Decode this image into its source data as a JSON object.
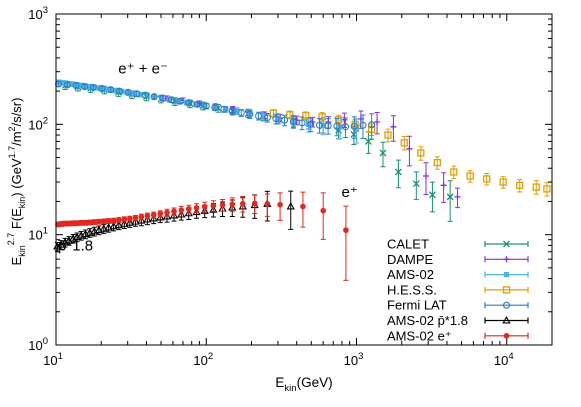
{
  "chart_data": {
    "type": "scatter",
    "xscale": "log",
    "yscale": "log",
    "xlim": [
      10,
      20000
    ],
    "ylim": [
      1,
      1000
    ],
    "grid": false,
    "legend_position": "bottom-right",
    "xlabel": "E_kin(GeV)",
    "ylabel": "E_kin^2.7 F(E_kin) (GeV^1.7/m^2/s/sr)",
    "x_ticks": [
      {
        "value": 10,
        "base": "10",
        "exp": "1"
      },
      {
        "value": 100,
        "base": "10",
        "exp": "2"
      },
      {
        "value": 1000,
        "base": "10",
        "exp": "3"
      },
      {
        "value": 10000,
        "base": "10",
        "exp": "4"
      }
    ],
    "y_ticks": [
      {
        "value": 1,
        "base": "10",
        "exp": "0"
      },
      {
        "value": 10,
        "base": "10",
        "exp": "1"
      },
      {
        "value": 100,
        "base": "10",
        "exp": "2"
      },
      {
        "value": 1000,
        "base": "10",
        "exp": "3"
      }
    ],
    "annotations": [
      {
        "text": "e⁺ + e⁻",
        "x": 38,
        "y": 290
      },
      {
        "text": "e⁺",
        "x": 900,
        "y": 22
      },
      {
        "text": "p̄*1.8",
        "x": 13.5,
        "y": 7.2
      }
    ],
    "series": [
      {
        "name": "CALET",
        "color": "#1a9070",
        "marker": "x",
        "points": [
          [
            11.5,
            225,
            8
          ],
          [
            14,
            218,
            8
          ],
          [
            17,
            212,
            8
          ],
          [
            21,
            205,
            8
          ],
          [
            26,
            195,
            8
          ],
          [
            32,
            186,
            8
          ],
          [
            40,
            178,
            8
          ],
          [
            50,
            170,
            8
          ],
          [
            62,
            161,
            8
          ],
          [
            78,
            154,
            8
          ],
          [
            95,
            147,
            8
          ],
          [
            120,
            140,
            8
          ],
          [
            150,
            132,
            8
          ],
          [
            190,
            125,
            8
          ],
          [
            240,
            118,
            9
          ],
          [
            300,
            113,
            10
          ],
          [
            380,
            108,
            11
          ],
          [
            480,
            103,
            12
          ],
          [
            600,
            97,
            14
          ],
          [
            760,
            88,
            16
          ],
          [
            960,
            81,
            19
          ],
          [
            1200,
            70,
            22
          ],
          [
            1500,
            55,
            25
          ],
          [
            1900,
            37,
            28
          ],
          [
            2500,
            29,
            28
          ],
          [
            3200,
            23,
            30
          ],
          [
            4200,
            22,
            40
          ]
        ]
      },
      {
        "name": "DAMPE",
        "color": "#8a2be2",
        "marker": "plus",
        "points": [
          [
            55,
            172,
            5
          ],
          [
            70,
            165,
            5
          ],
          [
            90,
            155,
            5
          ],
          [
            115,
            146,
            5
          ],
          [
            150,
            137,
            6
          ],
          [
            190,
            129,
            6
          ],
          [
            245,
            121,
            7
          ],
          [
            310,
            114,
            8
          ],
          [
            400,
            109,
            9
          ],
          [
            510,
            105,
            10
          ],
          [
            650,
            105,
            12
          ],
          [
            830,
            110,
            15
          ],
          [
            1070,
            112,
            18
          ],
          [
            1370,
            105,
            22
          ],
          [
            1760,
            95,
            26
          ],
          [
            2250,
            60,
            30
          ],
          [
            2900,
            34,
            32
          ],
          [
            3800,
            28,
            30
          ],
          [
            4700,
            22,
            20
          ]
        ]
      },
      {
        "name": "AMS-02",
        "color": "#4fb4e4",
        "marker": "square-filled",
        "points": [
          [
            10.5,
            240,
            5
          ],
          [
            11,
            238,
            5
          ],
          [
            11.6,
            236,
            5
          ],
          [
            12.3,
            233,
            5
          ],
          [
            13,
            231,
            5
          ],
          [
            13.8,
            228,
            5
          ],
          [
            14.7,
            225,
            5
          ],
          [
            15.6,
            222,
            5
          ],
          [
            16.7,
            219,
            5
          ],
          [
            18,
            216,
            5
          ],
          [
            19.5,
            213,
            5
          ],
          [
            21,
            210,
            5
          ],
          [
            23,
            206,
            5
          ],
          [
            25,
            202,
            5
          ],
          [
            27.5,
            198,
            5
          ],
          [
            30,
            194,
            5
          ],
          [
            33,
            190,
            5
          ],
          [
            36.5,
            186,
            5
          ],
          [
            40.5,
            182,
            5
          ],
          [
            45,
            177,
            5
          ],
          [
            50.5,
            172,
            5
          ],
          [
            57,
            167,
            5
          ],
          [
            65,
            162,
            5
          ],
          [
            74,
            157,
            5
          ],
          [
            85,
            152,
            5
          ],
          [
            98,
            147,
            6
          ],
          [
            115,
            142,
            6
          ],
          [
            135,
            137,
            6
          ],
          [
            160,
            132,
            7
          ],
          [
            195,
            127,
            8
          ],
          [
            240,
            120,
            9
          ],
          [
            300,
            112,
            10
          ],
          [
            380,
            104,
            12
          ],
          [
            480,
            100,
            15
          ],
          [
            600,
            98,
            18
          ],
          [
            780,
            95,
            22
          ],
          [
            1000,
            90,
            25
          ]
        ]
      },
      {
        "name": "H.E.S.S.",
        "color": "#e0a000",
        "marker": "square-open",
        "points": [
          [
            280,
            126,
            8
          ],
          [
            360,
            122,
            8
          ],
          [
            460,
            120,
            8
          ],
          [
            590,
            117,
            9
          ],
          [
            760,
            110,
            10
          ],
          [
            980,
            100,
            11
          ],
          [
            1260,
            90,
            12
          ],
          [
            1620,
            80,
            13
          ],
          [
            2080,
            68,
            14
          ],
          [
            2680,
            55,
            14
          ],
          [
            3450,
            45,
            13
          ],
          [
            4440,
            37,
            13
          ],
          [
            5710,
            34,
            12
          ],
          [
            7350,
            32,
            12
          ],
          [
            9460,
            30,
            12
          ],
          [
            12200,
            28,
            13
          ],
          [
            15700,
            27,
            14
          ],
          [
            18500,
            26,
            14
          ]
        ]
      },
      {
        "name": "Fermi LAT",
        "color": "#2a7fc8",
        "marker": "circle-open",
        "points": [
          [
            10.4,
            232,
            5
          ],
          [
            11.9,
            228,
            5
          ],
          [
            13.6,
            225,
            5
          ],
          [
            15.5,
            220,
            5
          ],
          [
            17.7,
            216,
            5
          ],
          [
            20.2,
            211,
            5
          ],
          [
            23.1,
            206,
            5
          ],
          [
            26.4,
            200,
            5
          ],
          [
            30.2,
            195,
            5
          ],
          [
            34.5,
            189,
            5
          ],
          [
            39.4,
            184,
            5
          ],
          [
            45,
            178,
            5
          ],
          [
            51.4,
            173,
            5
          ],
          [
            58.7,
            167,
            5
          ],
          [
            67,
            162,
            5
          ],
          [
            76.6,
            157,
            5
          ],
          [
            87.5,
            152,
            5
          ],
          [
            100,
            147,
            6
          ],
          [
            114,
            142,
            6
          ],
          [
            131,
            137,
            6
          ],
          [
            149,
            132,
            7
          ],
          [
            171,
            127,
            7
          ],
          [
            195,
            123,
            8
          ],
          [
            223,
            119,
            8
          ],
          [
            255,
            115,
            9
          ],
          [
            291,
            112,
            10
          ],
          [
            332,
            109,
            11
          ],
          [
            380,
            106,
            12
          ],
          [
            434,
            103,
            13
          ],
          [
            496,
            100,
            14
          ],
          [
            567,
            98,
            15
          ],
          [
            647,
            97,
            16
          ],
          [
            740,
            96,
            18
          ],
          [
            845,
            95,
            20
          ],
          [
            966,
            96,
            22
          ],
          [
            1104,
            98,
            24
          ],
          [
            1262,
            99,
            26
          ]
        ]
      },
      {
        "name": "AMS-02 p̄*1.8",
        "color": "#000000",
        "marker": "triangle-open",
        "points": [
          [
            10.2,
            7.8,
            9
          ],
          [
            10.8,
            8.1,
            9
          ],
          [
            11.5,
            8.5,
            9
          ],
          [
            12.2,
            8.8,
            9
          ],
          [
            13,
            9.2,
            9
          ],
          [
            13.8,
            9.5,
            9
          ],
          [
            14.7,
            9.8,
            9
          ],
          [
            15.7,
            10.1,
            9
          ],
          [
            16.8,
            10.4,
            9
          ],
          [
            18,
            10.7,
            9
          ],
          [
            19.3,
            11,
            9
          ],
          [
            20.8,
            11.3,
            9
          ],
          [
            22.4,
            11.6,
            9
          ],
          [
            24.2,
            11.9,
            9
          ],
          [
            26.2,
            12.2,
            9
          ],
          [
            28.5,
            12.5,
            9
          ],
          [
            31,
            12.8,
            9
          ],
          [
            33.8,
            13.1,
            9
          ],
          [
            37,
            13.4,
            10
          ],
          [
            40.6,
            13.7,
            10
          ],
          [
            44.7,
            14,
            10
          ],
          [
            49.4,
            14.3,
            10
          ],
          [
            54.8,
            14.6,
            11
          ],
          [
            61,
            14.9,
            11
          ],
          [
            68.2,
            15.2,
            11
          ],
          [
            76.5,
            15.6,
            12
          ],
          [
            86.2,
            16,
            12
          ],
          [
            97.7,
            16.4,
            13
          ],
          [
            111.5,
            16.8,
            14
          ],
          [
            128.3,
            17.2,
            15
          ],
          [
            149,
            17.6,
            17
          ],
          [
            175,
            18,
            20
          ],
          [
            210,
            18.5,
            24
          ],
          [
            255,
            19,
            30
          ],
          [
            365,
            18,
            38
          ]
        ]
      },
      {
        "name": "AMS-02 e⁺",
        "color": "#e0281e",
        "marker": "circle-filled",
        "points": [
          [
            10.3,
            12.4,
            5
          ],
          [
            10.9,
            12.5,
            5
          ],
          [
            11.5,
            12.6,
            5
          ],
          [
            12.2,
            12.6,
            5
          ],
          [
            13,
            12.7,
            5
          ],
          [
            13.8,
            12.7,
            5
          ],
          [
            14.7,
            12.8,
            5
          ],
          [
            15.7,
            12.8,
            5
          ],
          [
            16.8,
            12.9,
            5
          ],
          [
            18,
            13,
            5
          ],
          [
            19.3,
            13.1,
            5
          ],
          [
            20.8,
            13.2,
            5
          ],
          [
            22.4,
            13.3,
            5
          ],
          [
            24.2,
            13.4,
            5
          ],
          [
            26.2,
            13.6,
            5
          ],
          [
            28.5,
            13.8,
            5
          ],
          [
            31,
            14,
            5
          ],
          [
            33.8,
            14.2,
            5
          ],
          [
            37,
            14.5,
            6
          ],
          [
            40.6,
            14.8,
            6
          ],
          [
            44.7,
            15.1,
            6
          ],
          [
            49.4,
            15.5,
            6
          ],
          [
            54.8,
            15.9,
            7
          ],
          [
            61,
            16.3,
            7
          ],
          [
            68.2,
            16.7,
            8
          ],
          [
            76.5,
            17.1,
            8
          ],
          [
            86.2,
            17.5,
            9
          ],
          [
            97.7,
            17.9,
            10
          ],
          [
            111.5,
            18.3,
            11
          ],
          [
            128.3,
            18.6,
            12
          ],
          [
            149,
            18.9,
            14
          ],
          [
            175,
            19.1,
            16
          ],
          [
            210,
            19.2,
            19
          ],
          [
            255,
            19,
            23
          ],
          [
            310,
            18.7,
            28
          ],
          [
            440,
            18,
            35
          ],
          [
            600,
            16.5,
            45
          ],
          [
            850,
            11,
            65
          ]
        ]
      }
    ]
  }
}
